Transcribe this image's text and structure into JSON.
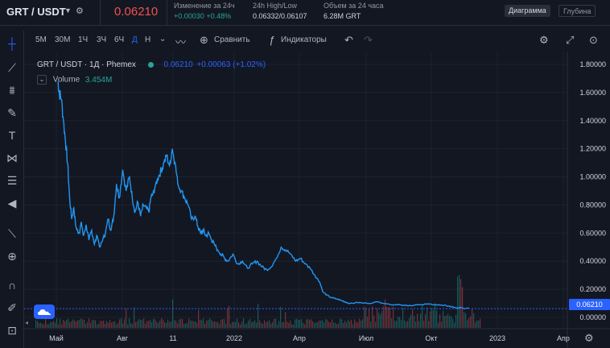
{
  "header": {
    "symbol": "GRT / USDT",
    "last_price": "0.06210",
    "change": {
      "label": "Изменение за 24ч",
      "abs": "+0.00030",
      "pct": "+0.48%"
    },
    "highlow": {
      "label": "24h High/Low",
      "value": "0.06332/0.06107"
    },
    "volume": {
      "label": "Объем за 24 часа",
      "value": "6.28M GRT"
    },
    "modes": [
      "Диаграмма",
      "Глубина"
    ],
    "active_mode": "Диаграмма"
  },
  "toolbar": {
    "intervals": [
      "5М",
      "30М",
      "1Ч",
      "3Ч",
      "6Ч",
      "Д",
      "Н"
    ],
    "active_interval": "Д",
    "compare_label": "Сравнить",
    "indicators_label": "Индикаторы"
  },
  "legend": {
    "title": "GRT / USDT · 1Д · Phemex",
    "price": "0.06210",
    "change": "+0.00063 (+1.02%)",
    "volume_label": "Volume",
    "volume_value": "3.454M"
  },
  "colors": {
    "background": "#131722",
    "line": "#2196f3",
    "accent": "#2962ff",
    "up": "#26a69a",
    "down": "#ef5350"
  },
  "icons": {
    "left_tools": [
      "crosshair-icon",
      "trend-line-icon",
      "fib-icon",
      "brush-icon",
      "text-icon",
      "pattern-icon",
      "prediction-icon",
      "back-arrow-icon",
      "ruler-icon",
      "zoom-in-icon",
      "magnet-icon",
      "lock-drawings-icon",
      "lock-icon"
    ],
    "toolbar": [
      "chevron-down-icon",
      "line-style-icon",
      "plus-circle-icon",
      "fx-icon",
      "undo-icon",
      "redo-icon",
      "gear-icon",
      "fullscreen-icon",
      "camera-icon"
    ]
  },
  "chart_data": {
    "type": "line",
    "series": [
      {
        "name": "GRT / USDT",
        "x": [
          "2021-04-22",
          "2021-04-24",
          "2021-04-27",
          "2021-04-30",
          "2021-05-03",
          "2021-05-06",
          "2021-05-09",
          "2021-05-12",
          "2021-05-15",
          "2021-05-18",
          "2021-05-20",
          "2021-05-23",
          "2021-05-26",
          "2021-05-29",
          "2021-06-02",
          "2021-06-06",
          "2021-06-10",
          "2021-06-14",
          "2021-06-18",
          "2021-06-22",
          "2021-06-26",
          "2021-06-30",
          "2021-07-04",
          "2021-07-08",
          "2021-07-12",
          "2021-07-16",
          "2021-07-20",
          "2021-07-25",
          "2021-07-30",
          "2021-08-04",
          "2021-08-08",
          "2021-08-12",
          "2021-08-16",
          "2021-08-20",
          "2021-08-24",
          "2021-08-28",
          "2021-09-01",
          "2021-09-04",
          "2021-09-07",
          "2021-09-11",
          "2021-09-15",
          "2021-09-19",
          "2021-09-23",
          "2021-09-27",
          "2021-10-01",
          "2021-10-05",
          "2021-10-09",
          "2021-10-13",
          "2021-10-18",
          "2021-10-23",
          "2021-10-28",
          "2021-11-02",
          "2021-11-07",
          "2021-11-11",
          "2021-11-15",
          "2021-11-19",
          "2021-11-23",
          "2021-11-27",
          "2021-12-01",
          "2021-12-05",
          "2021-12-10",
          "2021-12-15",
          "2021-12-20",
          "2021-12-25",
          "2022-01-01",
          "2022-01-08",
          "2022-01-15",
          "2022-01-22",
          "2022-01-29",
          "2022-02-05",
          "2022-02-12",
          "2022-02-19",
          "2022-02-26",
          "2022-03-05",
          "2022-03-12",
          "2022-03-19",
          "2022-03-26",
          "2022-04-02",
          "2022-04-09",
          "2022-04-16",
          "2022-04-23",
          "2022-04-30",
          "2022-05-07",
          "2022-05-12",
          "2022-05-17",
          "2022-05-24",
          "2022-06-01",
          "2022-06-08",
          "2022-06-13",
          "2022-06-20",
          "2022-07-01",
          "2022-07-15",
          "2022-08-01",
          "2022-08-15",
          "2022-09-01",
          "2022-09-15",
          "2022-10-01",
          "2022-10-15",
          "2022-11-01",
          "2022-11-10",
          "2022-11-20",
          "2022-12-01",
          "2022-12-10"
        ],
        "y": [
          1.68,
          1.6,
          1.55,
          1.4,
          1.25,
          1.1,
          0.85,
          0.7,
          0.78,
          0.65,
          0.62,
          0.6,
          0.68,
          0.58,
          0.66,
          0.55,
          0.62,
          0.52,
          0.58,
          0.5,
          0.55,
          0.6,
          0.7,
          0.62,
          0.72,
          0.95,
          0.85,
          1.05,
          0.9,
          1.0,
          0.85,
          0.75,
          0.82,
          0.72,
          0.8,
          0.78,
          0.75,
          0.85,
          0.88,
          0.95,
          1.0,
          1.05,
          1.1,
          1.15,
          1.08,
          1.2,
          1.1,
          0.95,
          0.9,
          0.85,
          0.8,
          0.7,
          0.72,
          0.65,
          0.6,
          0.62,
          0.58,
          0.6,
          0.55,
          0.52,
          0.48,
          0.45,
          0.42,
          0.4,
          0.45,
          0.38,
          0.4,
          0.35,
          0.38,
          0.4,
          0.36,
          0.34,
          0.36,
          0.42,
          0.5,
          0.48,
          0.45,
          0.4,
          0.42,
          0.38,
          0.35,
          0.3,
          0.25,
          0.18,
          0.16,
          0.14,
          0.13,
          0.12,
          0.11,
          0.1,
          0.105,
          0.1,
          0.11,
          0.095,
          0.09,
          0.085,
          0.09,
          0.095,
          0.085,
          0.08,
          0.07,
          0.065,
          0.062
        ]
      }
    ],
    "x_ticks": [
      "Май",
      "Авг",
      "11",
      "2022",
      "Апр",
      "Июл",
      "Окт",
      "2023",
      "Апр"
    ],
    "y_ticks": [
      "0.00000",
      "0.20000",
      "0.40000",
      "0.60000",
      "0.80000",
      "1.00000",
      "1.20000",
      "1.40000",
      "1.60000",
      "1.80000"
    ],
    "ylim": [
      0,
      1.8
    ],
    "last_value_label": "0.06210",
    "grid": true
  }
}
